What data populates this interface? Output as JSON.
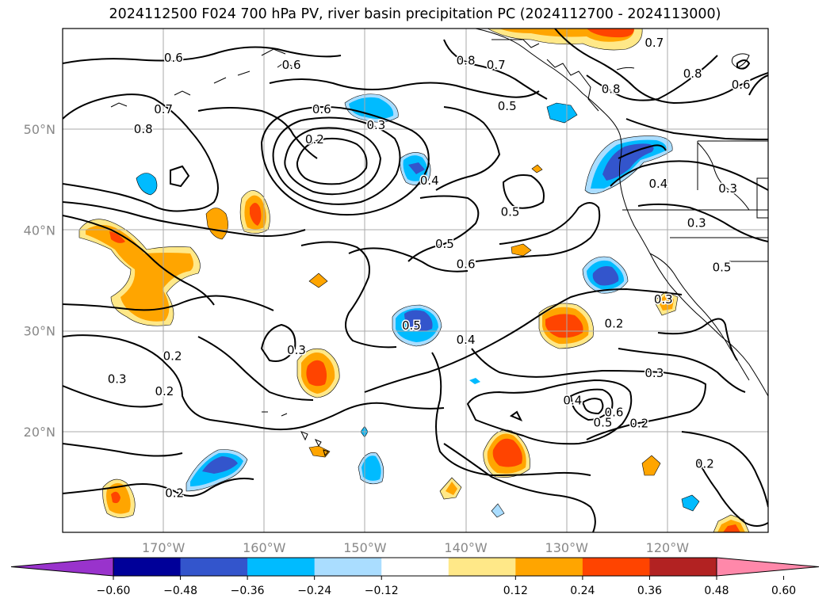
{
  "title": "2024112500 F024 700 hPa PV, river basin precipitation PC (2024112700 - 2024113000)",
  "map": {
    "projection": "plate-carree",
    "lon_range": [
      -180,
      -110
    ],
    "lat_range": [
      10,
      60
    ],
    "lon_ticks": [
      {
        "value": -170,
        "label": "170°W"
      },
      {
        "value": -160,
        "label": "160°W"
      },
      {
        "value": -150,
        "label": "150°W"
      },
      {
        "value": -140,
        "label": "140°W"
      },
      {
        "value": -130,
        "label": "130°W"
      },
      {
        "value": -120,
        "label": "120°W"
      }
    ],
    "lat_ticks": [
      {
        "value": 20,
        "label": "20°N"
      },
      {
        "value": 30,
        "label": "30°N"
      },
      {
        "value": 40,
        "label": "40°N"
      },
      {
        "value": 50,
        "label": "50°N"
      }
    ],
    "gridlines": true,
    "contour_labels": [
      {
        "text": "0.6",
        "lon": -169,
        "lat": 57.1
      },
      {
        "text": "0.6",
        "lon": -157.3,
        "lat": 56.4
      },
      {
        "text": "0.7",
        "lon": -170,
        "lat": 52
      },
      {
        "text": "0.8",
        "lon": -172,
        "lat": 50
      },
      {
        "text": "0.6",
        "lon": -154.3,
        "lat": 52
      },
      {
        "text": "0.2",
        "lon": -155,
        "lat": 49
      },
      {
        "text": "0.3",
        "lon": -148.9,
        "lat": 50.4
      },
      {
        "text": "0.4",
        "lon": -143.6,
        "lat": 44.9
      },
      {
        "text": "0.8",
        "lon": -140,
        "lat": 56.8
      },
      {
        "text": "0.7",
        "lon": -137,
        "lat": 56.4
      },
      {
        "text": "0.5",
        "lon": -135.9,
        "lat": 52.3
      },
      {
        "text": "0.7",
        "lon": -121.3,
        "lat": 58.6
      },
      {
        "text": "0.8",
        "lon": -125.6,
        "lat": 54
      },
      {
        "text": "0.8",
        "lon": -117.5,
        "lat": 55.5
      },
      {
        "text": "0.6",
        "lon": -112.7,
        "lat": 54.4
      },
      {
        "text": "0.4",
        "lon": -120.9,
        "lat": 44.6
      },
      {
        "text": "0.3",
        "lon": -114,
        "lat": 44.1
      },
      {
        "text": "0.3",
        "lon": -117.1,
        "lat": 40.7
      },
      {
        "text": "0.5",
        "lon": -114.6,
        "lat": 36.3
      },
      {
        "text": "0.3",
        "lon": -120.4,
        "lat": 33.1
      },
      {
        "text": "0.2",
        "lon": -125.3,
        "lat": 30.7
      },
      {
        "text": "0.5",
        "lon": -135.6,
        "lat": 41.8
      },
      {
        "text": "0.5",
        "lon": -142.1,
        "lat": 38.6
      },
      {
        "text": "0.6",
        "lon": -140,
        "lat": 36.6
      },
      {
        "text": "0.5",
        "lon": -145.4,
        "lat": 30.5
      },
      {
        "text": "0.4",
        "lon": -140,
        "lat": 29.1
      },
      {
        "text": "0.3",
        "lon": -156.8,
        "lat": 28.1
      },
      {
        "text": "0.2",
        "lon": -169.1,
        "lat": 27.5
      },
      {
        "text": "0.3",
        "lon": -174.6,
        "lat": 25.2
      },
      {
        "text": "0.2",
        "lon": -169.9,
        "lat": 24
      },
      {
        "text": "0.3",
        "lon": -121.3,
        "lat": 25.8
      },
      {
        "text": "0.4",
        "lon": -129.4,
        "lat": 23.1
      },
      {
        "text": "0.6",
        "lon": -125.3,
        "lat": 21.9
      },
      {
        "text": "0.5",
        "lon": -126.4,
        "lat": 20.9
      },
      {
        "text": "0.2",
        "lon": -122.8,
        "lat": 20.8
      },
      {
        "text": "0.2",
        "lon": -116.3,
        "lat": 16.8
      },
      {
        "text": "0.2",
        "lon": -168.9,
        "lat": 13.9
      }
    ]
  },
  "colorbar": {
    "ticks": [
      "−0.60",
      "−0.48",
      "−0.36",
      "−0.24",
      "−0.12",
      "0.12",
      "0.24",
      "0.36",
      "0.48",
      "0.60"
    ],
    "colors": [
      "#9933cc",
      "#000099",
      "#3355cc",
      "#00bbff",
      "#aaddff",
      "#ffffff",
      "#ffe888",
      "#ffa500",
      "#ff4400",
      "#b22222",
      "#ff88aa"
    ]
  },
  "colors": {
    "pos1": "#ffe888",
    "pos2": "#ffa500",
    "pos3": "#ff4400",
    "neg1": "#aaddff",
    "neg2": "#00bbff",
    "neg3": "#3355cc",
    "grid": "#aaaaaa",
    "tick": "#888888"
  }
}
